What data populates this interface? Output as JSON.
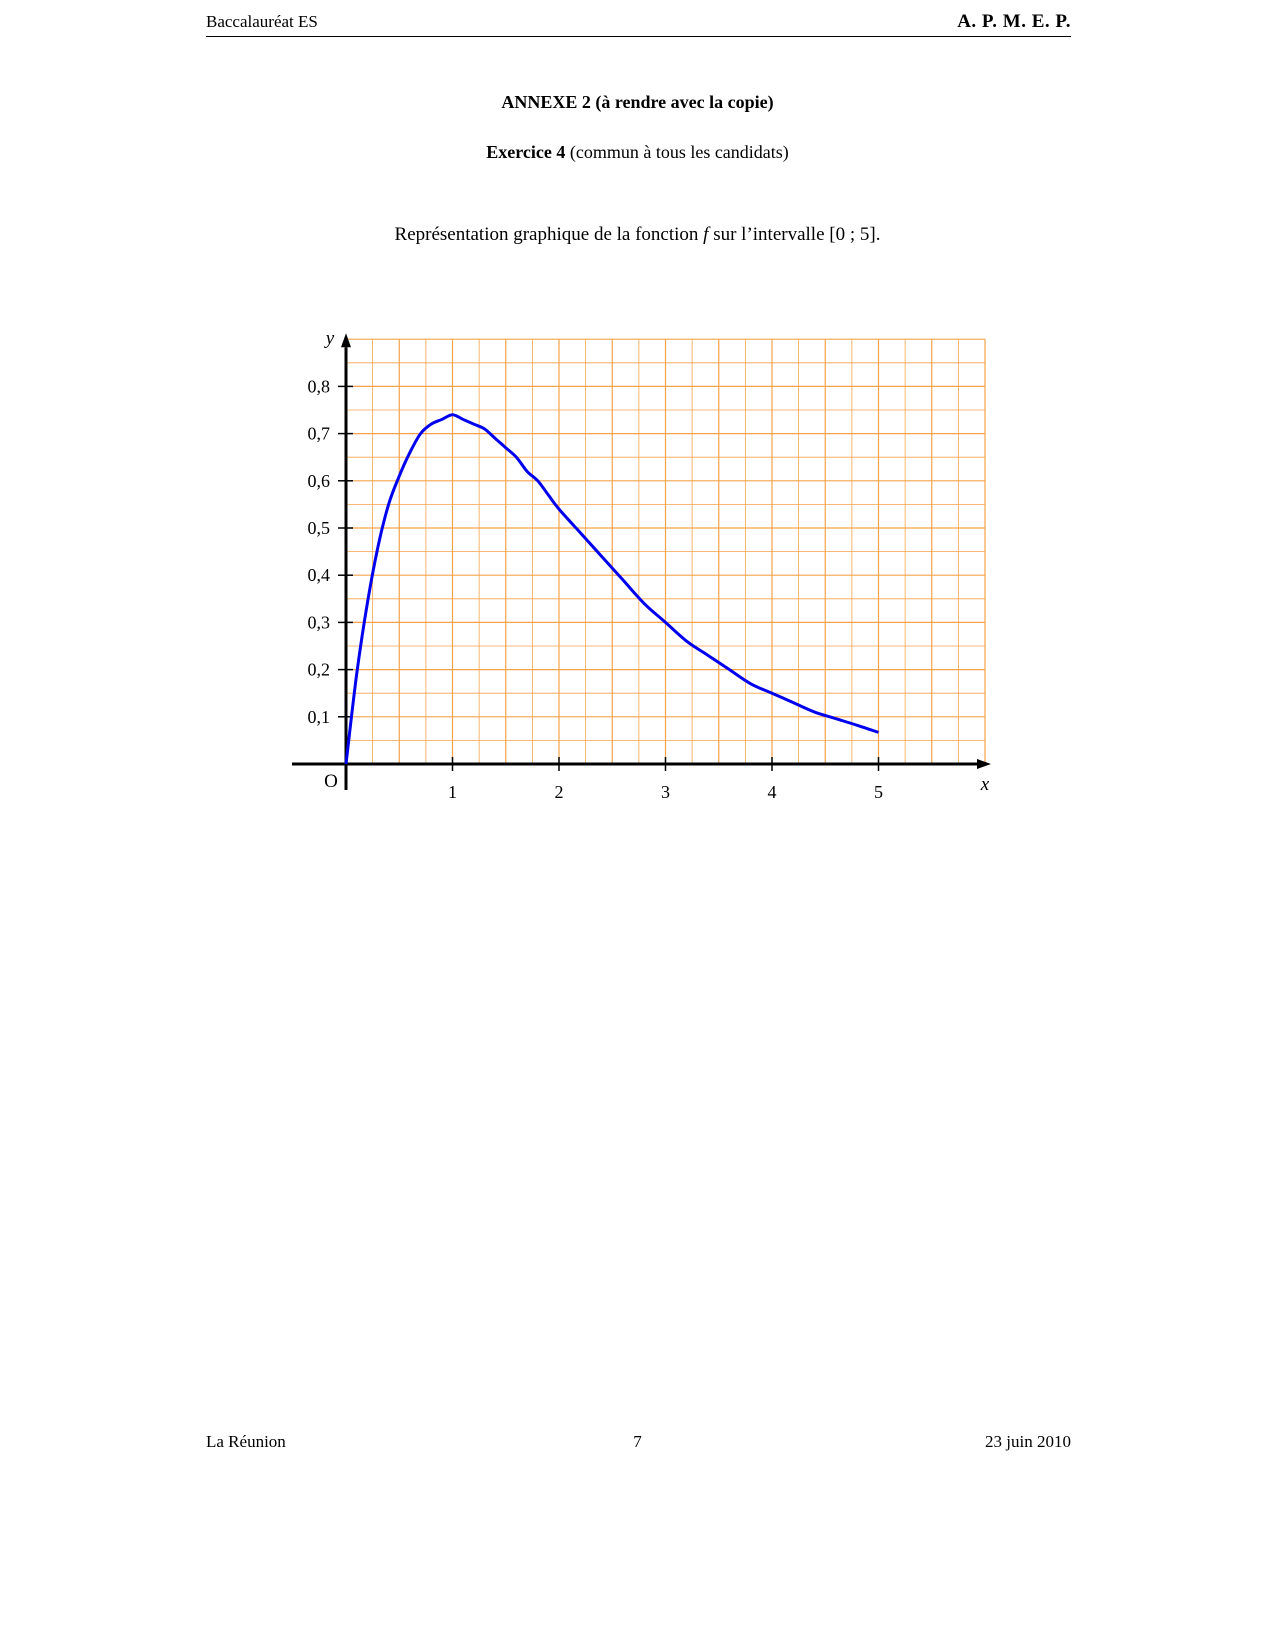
{
  "header": {
    "left": "Baccalauréat ES",
    "right": "A. P. M. E. P."
  },
  "title": {
    "annex": "ANNEXE 2 (à rendre avec la copie)",
    "exercise_bold": "Exercice 4",
    "exercise_rest": " (commun à tous les candidats)",
    "caption_before": "Représentation graphique de la fonction ",
    "caption_var": "f",
    "caption_after": " sur l’intervalle [0 ; 5]."
  },
  "chart_data": {
    "type": "line",
    "title": "",
    "xlabel": "x",
    "ylabel": "y",
    "origin_label": "O",
    "xlim": [
      0,
      6
    ],
    "ylim": [
      0,
      0.9
    ],
    "x_ticks": [
      1,
      2,
      3,
      4,
      5
    ],
    "x_tick_labels": [
      "1",
      "2",
      "3",
      "4",
      "5"
    ],
    "y_ticks": [
      0.1,
      0.2,
      0.3,
      0.4,
      0.5,
      0.6,
      0.7,
      0.8
    ],
    "y_tick_labels": [
      "0,1",
      "0,2",
      "0,3",
      "0,4",
      "0,5",
      "0,6",
      "0,7",
      "0,8"
    ],
    "grid": true,
    "grid_color": "#f5a34b",
    "curve_color": "#0000ee",
    "series": [
      {
        "x": [
          0,
          0.1,
          0.2,
          0.3,
          0.4,
          0.5,
          0.6,
          0.7,
          0.8,
          0.9,
          1.0,
          1.1,
          1.2,
          1.3,
          1.4,
          1.5,
          1.6,
          1.7,
          1.8,
          1.9,
          2.0,
          2.2,
          2.4,
          2.6,
          2.8,
          3.0,
          3.2,
          3.4,
          3.6,
          3.8,
          4.0,
          4.2,
          4.4,
          4.6,
          4.8,
          5.0
        ],
        "y": [
          0,
          0.19,
          0.34,
          0.46,
          0.55,
          0.61,
          0.66,
          0.7,
          0.72,
          0.73,
          0.74,
          0.73,
          0.72,
          0.71,
          0.69,
          0.67,
          0.65,
          0.62,
          0.6,
          0.57,
          0.54,
          0.49,
          0.44,
          0.39,
          0.34,
          0.3,
          0.26,
          0.23,
          0.2,
          0.17,
          0.15,
          0.13,
          0.11,
          0.096,
          0.082,
          0.067
        ]
      }
    ]
  },
  "footer": {
    "left": "La Réunion",
    "center": "7",
    "right": "23 juin 2010"
  }
}
